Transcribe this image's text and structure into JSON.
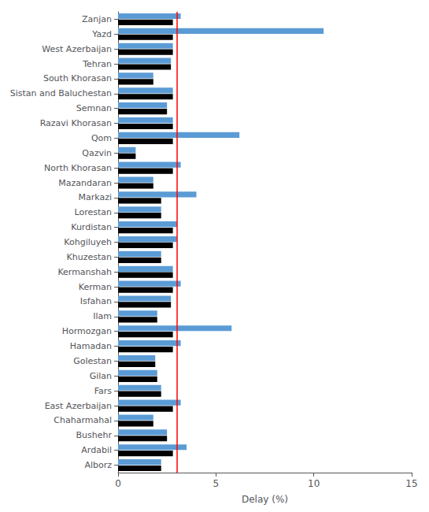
{
  "chart_data": {
    "type": "bar",
    "orientation": "horizontal",
    "xlabel": "Delay (%)",
    "categories": [
      "Zanjan",
      "Yazd",
      "West Azerbaijan",
      "Tehran",
      "South Khorasan",
      "Sistan and Baluchestan",
      "Semnan",
      "Razavi Khorasan",
      "Qom",
      "Qazvin",
      "North Khorasan",
      "Mazandaran",
      "Markazi",
      "Lorestan",
      "Kurdistan",
      "Kohgiluyeh",
      "Khuzestan",
      "Kermanshah",
      "Kerman",
      "Isfahan",
      "Ilam",
      "Hormozgan",
      "Hamadan",
      "Golestan",
      "Gilan",
      "Fars",
      "East Azerbaijan",
      "Chaharmahal",
      "Bushehr",
      "Ardabil",
      "Alborz"
    ],
    "series": [
      {
        "color": "#5B9BD5",
        "values": [
          3.2,
          10.5,
          2.8,
          2.7,
          1.8,
          2.8,
          2.5,
          2.8,
          6.2,
          0.9,
          3.2,
          1.8,
          4.0,
          2.2,
          3.0,
          3.0,
          2.2,
          2.8,
          3.2,
          2.7,
          2.0,
          5.8,
          3.2,
          1.9,
          2.0,
          2.2,
          3.2,
          1.8,
          2.5,
          3.5,
          2.2
        ]
      },
      {
        "color": "#000000",
        "values": [
          2.8,
          2.8,
          2.8,
          2.7,
          1.8,
          2.8,
          2.5,
          2.8,
          2.8,
          0.9,
          2.8,
          1.8,
          2.2,
          2.2,
          2.8,
          2.8,
          2.2,
          2.8,
          2.8,
          2.7,
          2.0,
          2.8,
          2.8,
          1.9,
          2.0,
          2.2,
          2.8,
          1.8,
          2.5,
          2.8,
          2.2
        ]
      }
    ],
    "vlines": [
      {
        "x": 3.0,
        "color": "#FF0000"
      }
    ],
    "xlim": [
      0,
      15
    ],
    "xticks": [
      0,
      5,
      10,
      15
    ],
    "grid": false
  }
}
